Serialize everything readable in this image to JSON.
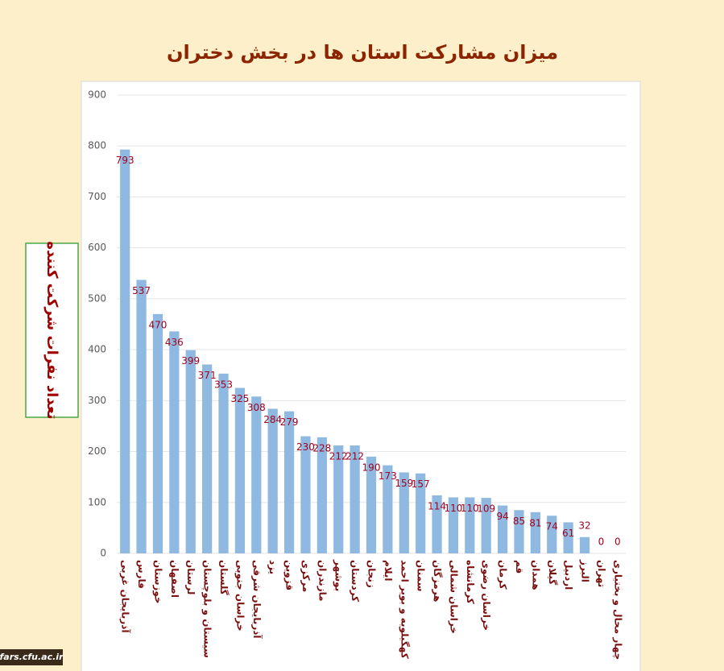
{
  "chart_data": {
    "type": "bar",
    "title": "میزان مشارکت استان ها در بخش دختران",
    "y_label": "تعداد نفرات شرکت کننده",
    "categories": [
      "آذربایجان غربی",
      "فارس",
      "خوزستان",
      "اصفهان",
      "لرستان",
      "سیستان و بلوچستان",
      "گلستان",
      "خراسان جنوبی",
      "آذربایجان شرقی",
      "یزد",
      "قزوین",
      "مرکزی",
      "مازندران",
      "بوشهر",
      "کردستان",
      "زنجان",
      "ایلام",
      "کهگیلویه و بویر احمد",
      "سمنان",
      "هرمزگان",
      "خراسان شمالی",
      "کرمانشاه",
      "خراسان رضوی",
      "کرمان",
      "قم",
      "همدان",
      "گیلان",
      "اردبیل",
      "البرز",
      "تهران",
      "چهار محال و بختیاری"
    ],
    "values": [
      793,
      537,
      470,
      436,
      399,
      371,
      353,
      325,
      308,
      284,
      279,
      230,
      228,
      212,
      212,
      190,
      173,
      159,
      157,
      114,
      110,
      110,
      109,
      94,
      85,
      81,
      74,
      61,
      32,
      0,
      0
    ],
    "color": "#8fb9e0",
    "ylim": [
      0,
      900
    ],
    "yticks": [
      0,
      100,
      200,
      300,
      400,
      500,
      600,
      700,
      800,
      900
    ],
    "grid": true
  },
  "footer": "fars.cfu.ac.ir"
}
